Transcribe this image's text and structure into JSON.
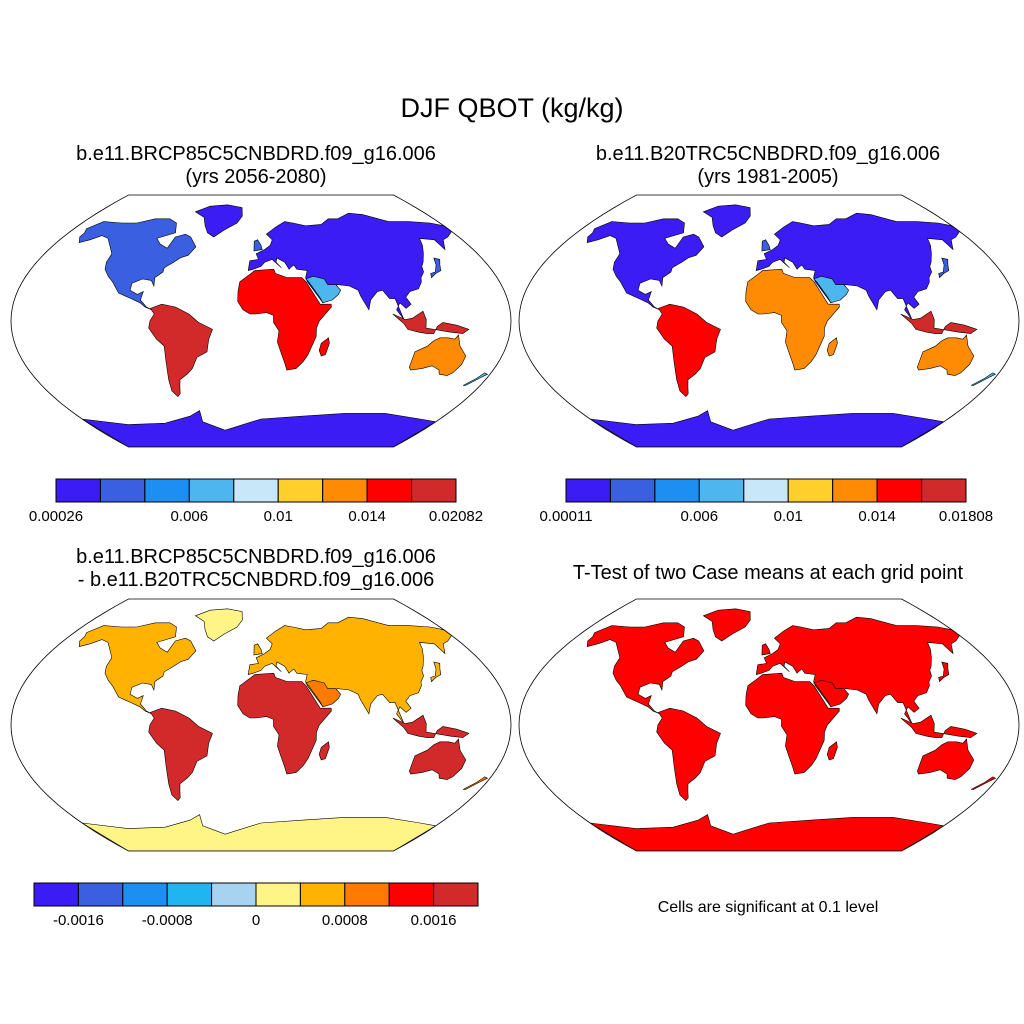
{
  "title": "DJF QBOT (kg/kg)",
  "colors": {
    "land_outline": "#000000",
    "frame": "#000000",
    "significant": "#ff0000"
  },
  "panels": [
    {
      "title_line1": "b.e11.BRCP85C5CNBDRD.f09_g16.006",
      "title_line2": "(yrs 2056-2080)",
      "colorbar": {
        "colors": [
          "#3b1cf5",
          "#3a5fe0",
          "#1e8ff2",
          "#4db6ef",
          "#c8e8fa",
          "#ffd02b",
          "#ff8b04",
          "#ff0000",
          "#d22a2a"
        ],
        "labels": [
          "0.00026",
          "0.006",
          "0.01",
          "0.014",
          "0.02082"
        ]
      }
    },
    {
      "title_line1": "b.e11.B20TRC5CNBDRD.f09_g16.006",
      "title_line2": "(yrs 1981-2005)",
      "colorbar": {
        "colors": [
          "#3b1cf5",
          "#3a5fe0",
          "#1e8ff2",
          "#4db6ef",
          "#c8e8fa",
          "#ffd02b",
          "#ff8b04",
          "#ff0000",
          "#d22a2a"
        ],
        "labels": [
          "0.00011",
          "0.006",
          "0.01",
          "0.014",
          "0.01808"
        ]
      }
    },
    {
      "title_line1": "b.e11.BRCP85C5CNBDRD.f09_g16.006",
      "title_line2": "- b.e11.B20TRC5CNBDRD.f09_g16.006",
      "colorbar": {
        "colors": [
          "#3b1cf5",
          "#3a5fe0",
          "#1e8ff2",
          "#20b4f0",
          "#a7d3f1",
          "#fff587",
          "#ffb300",
          "#ff7a00",
          "#ff0000",
          "#d22a2a"
        ],
        "labels": [
          "-0.0016",
          "-0.0008",
          "0",
          "0.0008",
          "0.0016"
        ]
      }
    },
    {
      "title_line1": "T-Test of two Case means at each grid point",
      "note": "Cells are significant at 0.1 level"
    }
  ]
}
